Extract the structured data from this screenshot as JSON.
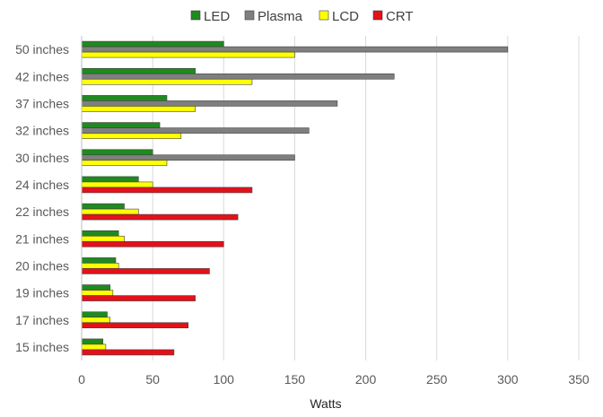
{
  "chart_data": {
    "type": "bar",
    "orientation": "horizontal",
    "categories": [
      "50 inches",
      "42 inches",
      "37 inches",
      "32 inches",
      "30 inches",
      "24 inches",
      "22 inches",
      "21 inches",
      "20 inches",
      "19 inches",
      "17 inches",
      "15 inches"
    ],
    "series": [
      {
        "name": "LED",
        "color": "#1f8a1f",
        "values": [
          100,
          80,
          60,
          55,
          50,
          40,
          30,
          26,
          24,
          20,
          18,
          15
        ]
      },
      {
        "name": "Plasma",
        "color": "#7f7f7f",
        "values": [
          300,
          220,
          180,
          160,
          150,
          null,
          null,
          null,
          null,
          null,
          null,
          null
        ]
      },
      {
        "name": "LCD",
        "color": "#ffff00",
        "values": [
          150,
          120,
          80,
          70,
          60,
          50,
          40,
          30,
          26,
          22,
          20,
          17
        ]
      },
      {
        "name": "CRT",
        "color": "#e3111a",
        "values": [
          null,
          null,
          null,
          null,
          null,
          120,
          110,
          100,
          90,
          80,
          75,
          65
        ]
      }
    ],
    "xlabel": "Watts",
    "ylabel": "",
    "xlim": [
      0,
      350
    ],
    "xticks": [
      "0",
      "50",
      "100",
      "150",
      "200",
      "250",
      "300",
      "350"
    ],
    "grid": "vertical",
    "legend_position": "top"
  }
}
